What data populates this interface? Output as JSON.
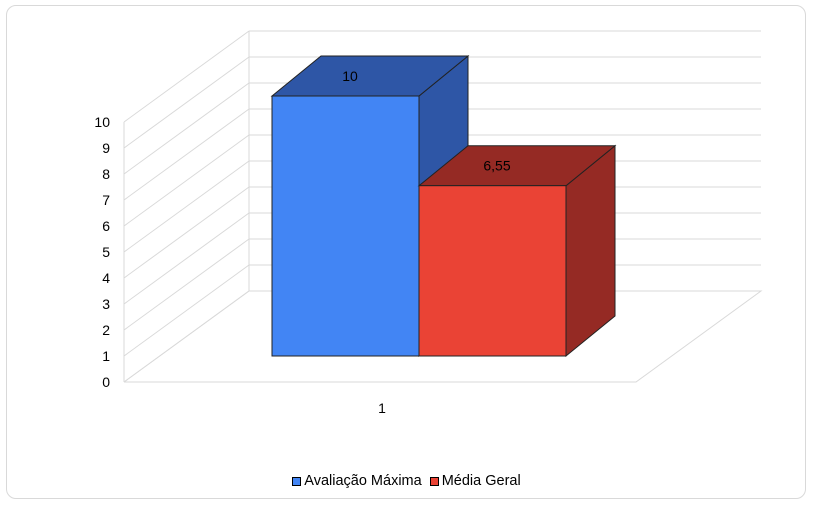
{
  "chart_data": {
    "type": "bar",
    "categories": [
      "1"
    ],
    "series": [
      {
        "name": "Avaliação Máxima",
        "values": [
          10
        ],
        "label": "10",
        "color": "#4285f4",
        "side_color": "#2e56a6"
      },
      {
        "name": "Média Geral",
        "values": [
          6.55
        ],
        "label": "6,55",
        "color": "#ea4335",
        "side_color": "#952a24"
      }
    ],
    "ylim": [
      0,
      10
    ],
    "yticks": [
      "0",
      "1",
      "2",
      "3",
      "4",
      "5",
      "6",
      "7",
      "8",
      "9",
      "10"
    ],
    "grid": true,
    "legend_position": "bottom",
    "style": "3d"
  }
}
